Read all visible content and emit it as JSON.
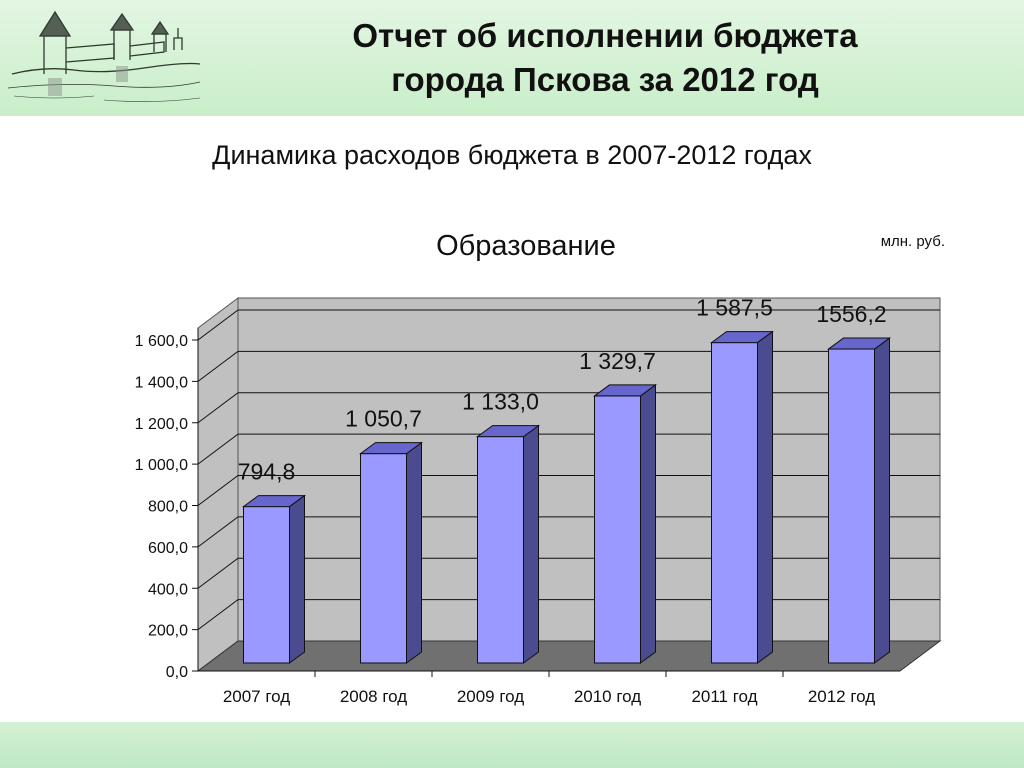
{
  "header": {
    "title_line1": "Отчет об исполнении бюджета",
    "title_line2": "города Пскова за 2012 год",
    "logo_icon": "pskov-kremlin-drawing-icon"
  },
  "subtitle": "Динамика расходов бюджета в 2007-2012 годах",
  "colors": {
    "bar_front": "#9999ff",
    "bar_side": "#4b4b90",
    "bar_top": "#6666cc",
    "wall": "#c0c0c0",
    "floor": "#707070",
    "header_band": "#d8f2d8"
  },
  "chart_data": {
    "type": "bar",
    "title": "Образование",
    "unit": "млн. руб.",
    "categories": [
      "2007 год",
      "2008 год",
      "2009 год",
      "2010 год",
      "2011 год",
      "2012 год"
    ],
    "values": [
      794.8,
      1050.7,
      1133.0,
      1329.7,
      1587.5,
      1556.2
    ],
    "value_labels": [
      "794,8",
      "1 050,7",
      "1 133,0",
      "1 329,7",
      "1 587,5",
      "1556,2"
    ],
    "y_ticks": [
      "0,0",
      "200,0",
      "400,0",
      "600,0",
      "800,0",
      "1 000,0",
      "1 200,0",
      "1 400,0",
      "1 600,0"
    ],
    "ylim": [
      0,
      1600
    ],
    "grid": true,
    "style": "3d-column"
  }
}
